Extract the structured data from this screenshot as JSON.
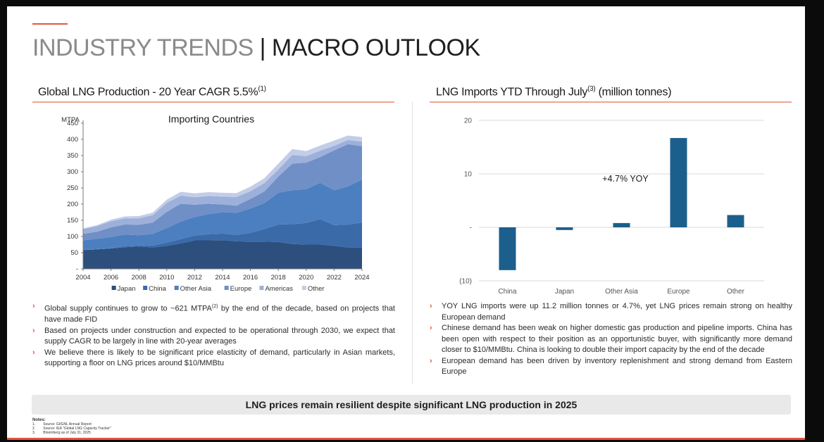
{
  "page": {
    "title_part1": "INDUSTRY TRENDS ",
    "title_sep": "|",
    "title_part2": " MACRO OUTLOOK"
  },
  "left_section": {
    "heading": "Global LNG Production - 20 Year CAGR 5.5%",
    "heading_sup": "(1)",
    "bullets": [
      {
        "text_before": "Global supply continues to grow to ~621 MTPA",
        "sup": "(2)",
        "text_after": " by the end of the decade, based on projects that have made FID"
      },
      {
        "text_before": "Based on projects under construction and expected to be operational through 2030, we expect that supply CAGR to be largely in line with 20-year averages",
        "sup": "",
        "text_after": ""
      },
      {
        "text_before": "We believe there is likely to be significant price elasticity of demand, particularly in Asian markets, supporting a floor on LNG prices around $10/MMBtu",
        "sup": "",
        "text_after": ""
      }
    ]
  },
  "right_section": {
    "heading": "LNG Imports YTD Through July",
    "heading_sup": "(3)",
    "heading_after": " (million tonnes)",
    "bullets": [
      {
        "text": "YOY LNG imports were up 11.2 million tonnes or 4.7%, yet LNG prices remain strong on healthy European demand"
      },
      {
        "text": "Chinese demand has been weak on higher domestic gas production and pipeline imports. China has been open with respect to their position as an opportunistic buyer, with significantly more demand closer to $10/MMBtu. China is looking to double their import capacity by the end of the decade"
      },
      {
        "text": "European demand has been driven by inventory replenishment and strong demand from Eastern Europe"
      }
    ]
  },
  "banner": {
    "text": "LNG prices remain resilient despite significant LNG production in 2025"
  },
  "notes": {
    "heading": "Notes:",
    "items": [
      {
        "num": "1.",
        "text": "Source: GIIGNL Annual Report"
      },
      {
        "num": "2.",
        "text": "Source: IEA \"Global LNG Capacity Tracker\""
      },
      {
        "num": "3.",
        "text": "Bloomberg as of July 31, 2025"
      }
    ]
  },
  "colors": {
    "accent": "#e2583e",
    "bar": "#1c5f8c",
    "japan": "#2d4f7e",
    "china": "#3a6aa8",
    "other_asia": "#4c7fc0",
    "europe": "#6f8fc6",
    "americas": "#9cb0da",
    "other": "#c3cde8"
  },
  "chart_data": [
    {
      "type": "area",
      "stacked": true,
      "title": "Importing Countries",
      "ylabel": "MTPA",
      "xlabel": "",
      "ylim": [
        0,
        450
      ],
      "yticks": [
        "-",
        "50",
        "100",
        "150",
        "200",
        "250",
        "300",
        "350",
        "400",
        "450"
      ],
      "x": [
        2004,
        2005,
        2006,
        2007,
        2008,
        2009,
        2010,
        2011,
        2012,
        2013,
        2014,
        2015,
        2016,
        2017,
        2018,
        2019,
        2020,
        2021,
        2022,
        2023,
        2024
      ],
      "xticks": [
        "2004",
        "2006",
        "2008",
        "2010",
        "2012",
        "2014",
        "2016",
        "2018",
        "2020",
        "2022",
        "2024"
      ],
      "legend_position": "bottom",
      "series": [
        {
          "name": "Japan",
          "values": [
            58,
            60,
            63,
            67,
            69,
            66,
            71,
            79,
            88,
            88,
            89,
            85,
            84,
            84,
            83,
            77,
            75,
            75,
            71,
            66,
            66
          ]
        },
        {
          "name": "China",
          "values": [
            0,
            1,
            1,
            3,
            3,
            6,
            10,
            13,
            15,
            19,
            20,
            20,
            27,
            39,
            54,
            61,
            67,
            79,
            64,
            71,
            77
          ]
        },
        {
          "name": "Other Asia",
          "values": [
            30,
            32,
            34,
            36,
            32,
            36,
            45,
            54,
            57,
            62,
            66,
            68,
            75,
            80,
            98,
            105,
            104,
            112,
            108,
            118,
            133
          ]
        },
        {
          "name": "Europe",
          "values": [
            20,
            22,
            30,
            31,
            32,
            35,
            50,
            55,
            38,
            32,
            24,
            22,
            30,
            36,
            50,
            82,
            82,
            79,
            123,
            130,
            103
          ]
        },
        {
          "name": "Americas",
          "values": [
            15,
            17,
            19,
            19,
            20,
            23,
            28,
            25,
            23,
            24,
            24,
            27,
            24,
            26,
            22,
            27,
            20,
            20,
            14,
            13,
            14
          ]
        },
        {
          "name": "Other",
          "values": [
            2,
            3,
            5,
            6,
            7,
            8,
            10,
            12,
            12,
            12,
            12,
            12,
            14,
            15,
            18,
            18,
            16,
            16,
            16,
            14,
            14
          ]
        }
      ]
    },
    {
      "type": "bar",
      "categories": [
        "China",
        "Japan",
        "Other Asia",
        "Europe",
        "Other"
      ],
      "values": [
        -8,
        -0.5,
        0.8,
        16.7,
        2.3
      ],
      "ylim": [
        -10,
        20
      ],
      "yticks": [
        {
          "v": 20,
          "label": "20"
        },
        {
          "v": 10,
          "label": "10"
        },
        {
          "v": 0,
          "label": "-"
        },
        {
          "v": -10,
          "label": "(10)"
        }
      ],
      "annotation": "+4.7% YOY",
      "title": "",
      "xlabel": "",
      "ylabel": ""
    }
  ]
}
